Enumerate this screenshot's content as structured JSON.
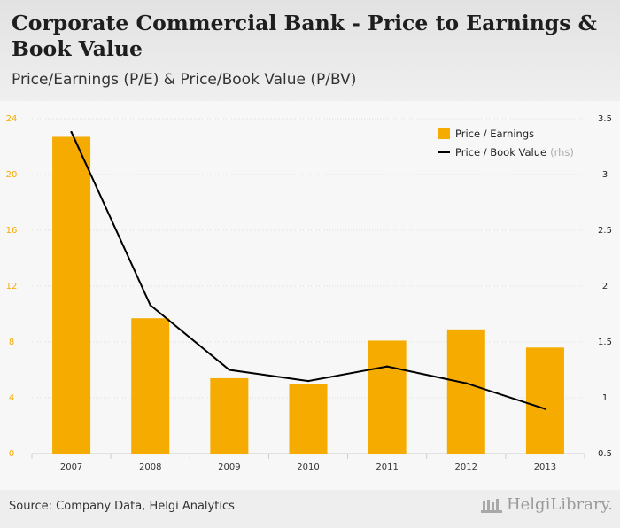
{
  "header": {
    "title": "Corporate Commercial Bank - Price to Earnings & Book Value",
    "subtitle": "Price/Earnings (P/E) & Price/Book Value (P/BV)"
  },
  "footer": {
    "source": "Source: Company Data, Helgi Analytics",
    "brand": "HelgiLibrary."
  },
  "legend": {
    "pe_label": "Price / Earnings",
    "pbv_label": "Price / Book Value",
    "pbv_suffix": "(rhs)"
  },
  "colors": {
    "bar": "#f5ab00",
    "line": "#000000",
    "left_axis_text": "#f5ab00",
    "right_axis_text": "#222222"
  },
  "chart_data": {
    "type": "bar",
    "title": "Corporate Commercial Bank - Price to Earnings & Book Value",
    "subtitle": "Price/Earnings (P/E) & Price/Book Value (P/BV)",
    "categories": [
      "2007",
      "2008",
      "2009",
      "2010",
      "2011",
      "2012",
      "2013"
    ],
    "series": [
      {
        "name": "Price / Earnings",
        "type": "bar",
        "axis": "left",
        "values": [
          22.7,
          9.7,
          5.4,
          5.0,
          8.1,
          8.9,
          7.6
        ]
      },
      {
        "name": "Price / Book Value",
        "type": "line",
        "axis": "right",
        "values": [
          3.38,
          1.83,
          1.25,
          1.15,
          1.28,
          1.13,
          0.9
        ]
      }
    ],
    "y_left": {
      "min": 0,
      "max": 24,
      "ticks": [
        "0",
        "4",
        "8",
        "12",
        "16",
        "20",
        "24"
      ]
    },
    "y_right": {
      "min": 0.5,
      "max": 3.5,
      "ticks": [
        "0.5",
        "1",
        "1.5",
        "2",
        "2.5",
        "3",
        "3.5"
      ]
    },
    "grid": true,
    "legend_position": "top-right"
  }
}
